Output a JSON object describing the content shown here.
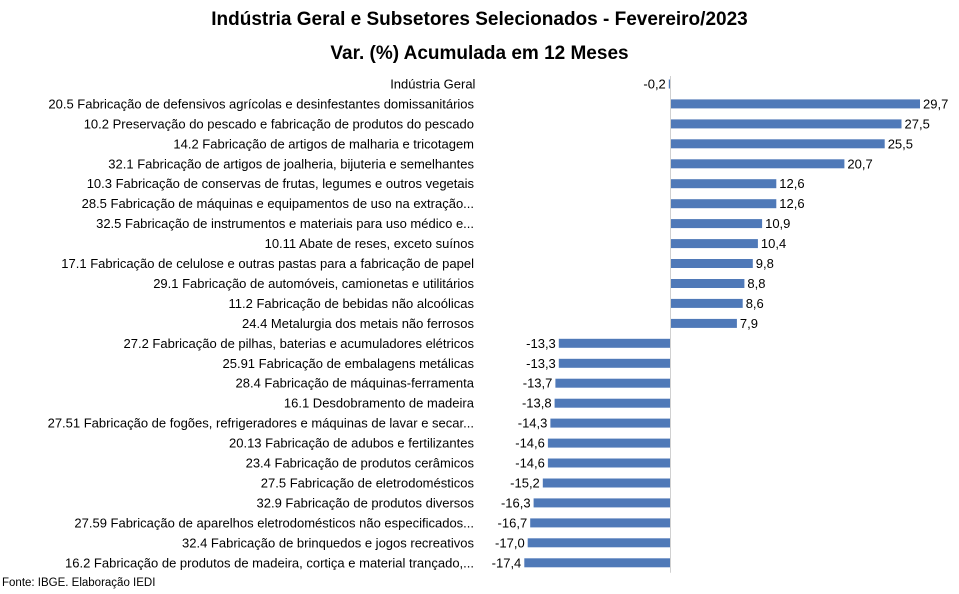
{
  "chart_data": {
    "type": "bar",
    "orientation": "horizontal",
    "title": "Indústria Geral e Subsetores Selecionados - Fevereiro/2023",
    "subtitle": "Var. (%) Acumulada em 12 Meses",
    "bar_color": "#4f79b8",
    "categories": [
      "Indústria Geral",
      "20.5 Fabricação de defensivos agrícolas e desinfestantes domissanitários",
      "10.2 Preservação do pescado e fabricação de produtos do pescado",
      "14.2 Fabricação de artigos de malharia e tricotagem",
      "32.1 Fabricação de artigos de joalheria, bijuteria e semelhantes",
      "10.3 Fabricação de conservas de frutas, legumes e outros vegetais",
      "28.5 Fabricação de máquinas e equipamentos de uso na extração...",
      "32.5 Fabricação de instrumentos e materiais para uso médico e...",
      "10.11 Abate de reses, exceto suínos",
      "17.1 Fabricação de celulose e outras pastas para a fabricação de papel",
      "29.1 Fabricação de automóveis, camionetas e utilitários",
      "11.2 Fabricação de bebidas não alcoólicas",
      "24.4 Metalurgia dos metais não ferrosos",
      "27.2 Fabricação de pilhas, baterias e acumuladores elétricos",
      "25.91 Fabricação de embalagens metálicas",
      "28.4 Fabricação de máquinas-ferramenta",
      "16.1 Desdobramento de madeira",
      "27.51 Fabricação de fogões, refrigeradores e máquinas de lavar e secar...",
      "20.13 Fabricação de adubos e fertilizantes",
      "23.4 Fabricação de produtos cerâmicos",
      "27.5 Fabricação de eletrodomésticos",
      "32.9 Fabricação de produtos diversos",
      "27.59 Fabricação de aparelhos eletrodomésticos não especificados...",
      "32.4 Fabricação de brinquedos e jogos recreativos",
      "16.2 Fabricação de produtos de madeira, cortiça e material trançado,..."
    ],
    "values": [
      -0.2,
      29.7,
      27.5,
      25.5,
      20.7,
      12.6,
      12.6,
      10.9,
      10.4,
      9.8,
      8.8,
      8.6,
      7.9,
      -13.3,
      -13.3,
      -13.7,
      -13.8,
      -14.3,
      -14.6,
      -14.6,
      -15.2,
      -16.3,
      -16.7,
      -17.0,
      -17.4
    ],
    "data_labels": [
      "-0,2",
      "29,7",
      "27,5",
      "25,5",
      "20,7",
      "12,6",
      "12,6",
      "10,9",
      "10,4",
      "9,8",
      "8,8",
      "8,6",
      "7,9",
      "-13,3",
      "-13,3",
      "-13,7",
      "-13,8",
      "-14,3",
      "-14,6",
      "-14,6",
      "-15,2",
      "-16,3",
      "-16,7",
      "-17,0",
      "-17,4"
    ],
    "xlim": [
      -17.4,
      29.7
    ],
    "grid": false,
    "legend": "none"
  },
  "source": "Fonte: IBGE. Elaboração IEDI"
}
